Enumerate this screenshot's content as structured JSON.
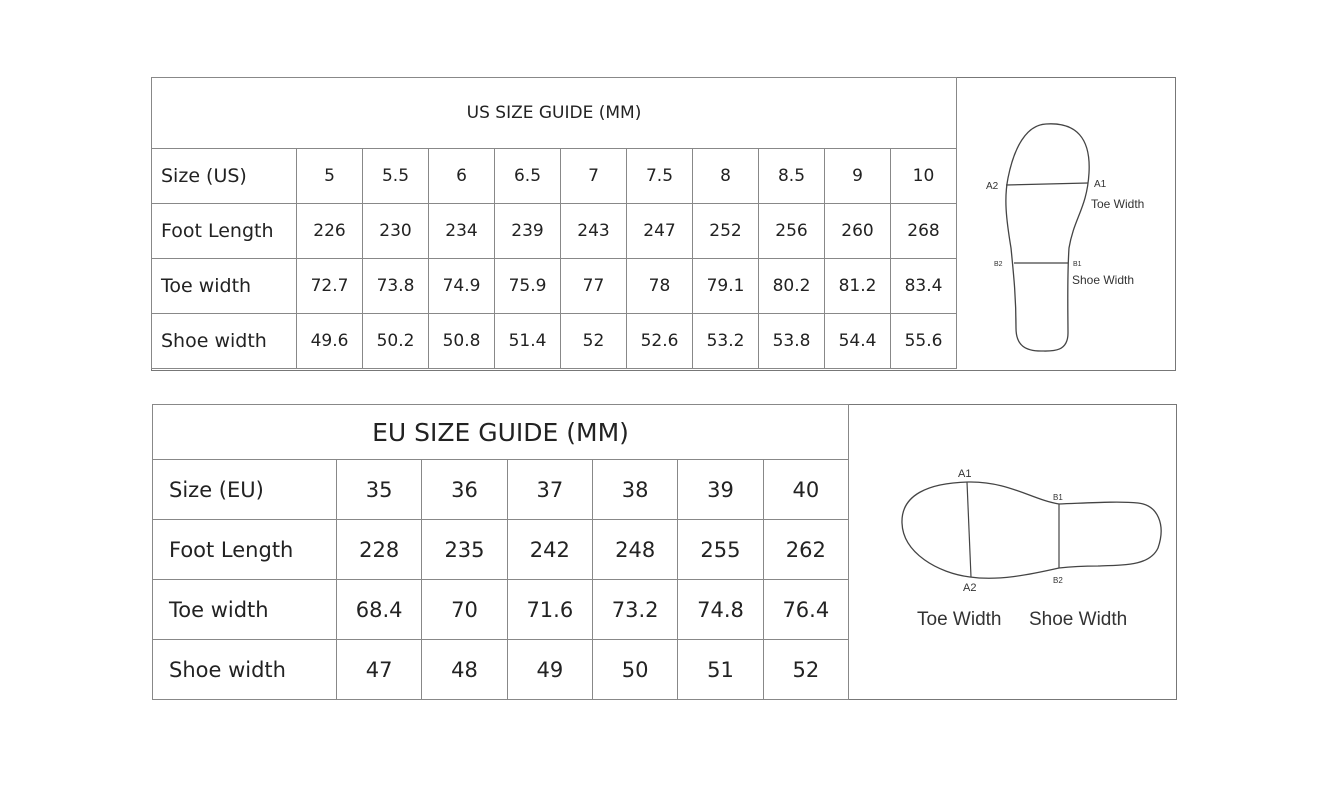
{
  "us": {
    "title": "US SIZE GUIDE (MM)",
    "rows": [
      {
        "label": "Size (US)",
        "values": [
          "5",
          "5.5",
          "6",
          "6.5",
          "7",
          "7.5",
          "8",
          "8.5",
          "9",
          "10"
        ]
      },
      {
        "label": "Foot Length",
        "values": [
          "226",
          "230",
          "234",
          "239",
          "243",
          "247",
          "252",
          "256",
          "260",
          "268"
        ]
      },
      {
        "label": "Toe width",
        "values": [
          "72.7",
          "73.8",
          "74.9",
          "75.9",
          "77",
          "78",
          "79.1",
          "80.2",
          "81.2",
          "83.4"
        ]
      },
      {
        "label": "Shoe width",
        "values": [
          "49.6",
          "50.2",
          "50.8",
          "51.4",
          "52",
          "52.6",
          "53.2",
          "53.8",
          "54.4",
          "55.6"
        ]
      }
    ],
    "diagram": {
      "a1": "A1",
      "a2": "A2",
      "b1": "B1",
      "b2": "B2",
      "toe": "Toe Width",
      "shoe": "Shoe Width"
    }
  },
  "eu": {
    "title": "EU SIZE GUIDE (MM)",
    "rows": [
      {
        "label": "Size (EU)",
        "values": [
          "35",
          "36",
          "37",
          "38",
          "39",
          "40"
        ]
      },
      {
        "label": "Foot Length",
        "values": [
          "228",
          "235",
          "242",
          "248",
          "255",
          "262"
        ]
      },
      {
        "label": "Toe width",
        "values": [
          "68.4",
          "70",
          "71.6",
          "73.2",
          "74.8",
          "76.4"
        ]
      },
      {
        "label": "Shoe width",
        "values": [
          "47",
          "48",
          "49",
          "50",
          "51",
          "52"
        ]
      }
    ],
    "diagram": {
      "a1": "A1",
      "a2": "A2",
      "b1": "B1",
      "b2": "B2",
      "toe": "Toe Width",
      "shoe": "Shoe Width"
    }
  }
}
